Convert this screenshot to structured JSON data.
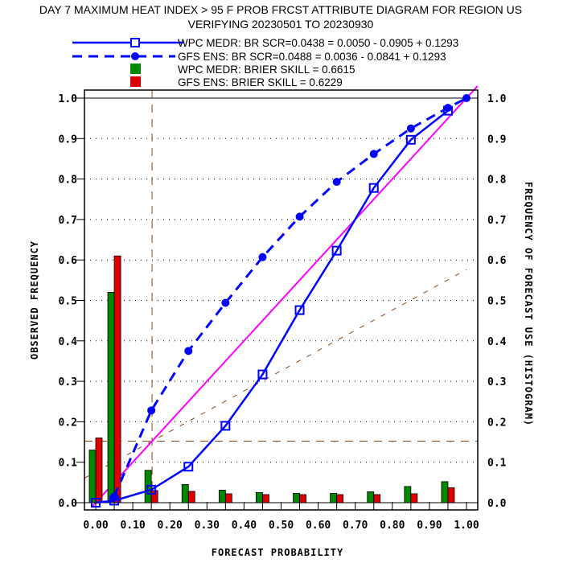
{
  "chart_data": {
    "type": "line",
    "title_line1": "DAY 7 MAXIMUM HEAT INDEX > 95 F PROB FRCST ATTRIBUTE DIAGRAM FOR REGION US",
    "title_line2": "VERIFYING 20230501 TO 20230930",
    "xlabel": "FORECAST PROBABILITY",
    "ylabel": "OBSERVED FREQUENCY",
    "y2label": "FREQUENCY OF FORECAST USE (HISTOGRAM)",
    "xlim": [
      0,
      1
    ],
    "ylim": [
      0,
      1
    ],
    "x_tick_labels": [
      "0.00",
      "0.10",
      "0.20",
      "0.30",
      "0.40",
      "0.50",
      "0.60",
      "0.70",
      "0.80",
      "0.90",
      "1.00"
    ],
    "y_tick_labels": [
      "0.0",
      "0.1",
      "0.2",
      "0.3",
      "0.4",
      "0.5",
      "0.6",
      "0.7",
      "0.8",
      "0.9",
      "1.0"
    ],
    "grid": "dotted horizontal",
    "legend": [
      {
        "label": "WPC MEDR: BR SCR=0.0438 = 0.0050 - 0.0905 + 0.1293",
        "style": "solid-square",
        "color": "#0000ff"
      },
      {
        "label": "GFS ENS: BR SCR=0.0488 = 0.0036 - 0.0841 + 0.1293",
        "style": "dashed-circle",
        "color": "#0000ff"
      },
      {
        "label": "WPC MEDR:  BRIER SKILL = 0.6615",
        "style": "bar",
        "color": "#008800"
      },
      {
        "label": "GFS ENS:  BRIER SKILL = 0.6229",
        "style": "bar",
        "color": "#dd0000"
      }
    ],
    "climatology": 0.152,
    "series": [
      {
        "name": "WPC MEDR",
        "color": "#0000ff",
        "x": [
          0.0,
          0.05,
          0.15,
          0.25,
          0.35,
          0.45,
          0.55,
          0.65,
          0.75,
          0.85,
          0.95
        ],
        "y": [
          0.0,
          0.005,
          0.032,
          0.089,
          0.19,
          0.317,
          0.476,
          0.623,
          0.778,
          0.897,
          0.969
        ]
      },
      {
        "name": "GFS ENS",
        "color": "#0000ff",
        "x": [
          0.05,
          0.15,
          0.25,
          0.35,
          0.45,
          0.55,
          0.65,
          0.75,
          0.85,
          0.95,
          1.0
        ],
        "y": [
          0.015,
          0.228,
          0.375,
          0.494,
          0.607,
          0.707,
          0.793,
          0.862,
          0.925,
          0.976,
          1.0
        ]
      }
    ],
    "histogram": {
      "x": [
        0.0,
        0.05,
        0.15,
        0.25,
        0.35,
        0.45,
        0.55,
        0.65,
        0.75,
        0.85,
        0.95
      ],
      "wpc": [
        0.13,
        0.52,
        0.08,
        0.045,
        0.031,
        0.025,
        0.023,
        0.023,
        0.027,
        0.04,
        0.052
      ],
      "gfs": [
        0.16,
        0.61,
        0.03,
        0.028,
        0.022,
        0.02,
        0.02,
        0.02,
        0.02,
        0.022,
        0.037
      ],
      "wpc_color": "#008800",
      "gfs_color": "#dd0000"
    }
  }
}
